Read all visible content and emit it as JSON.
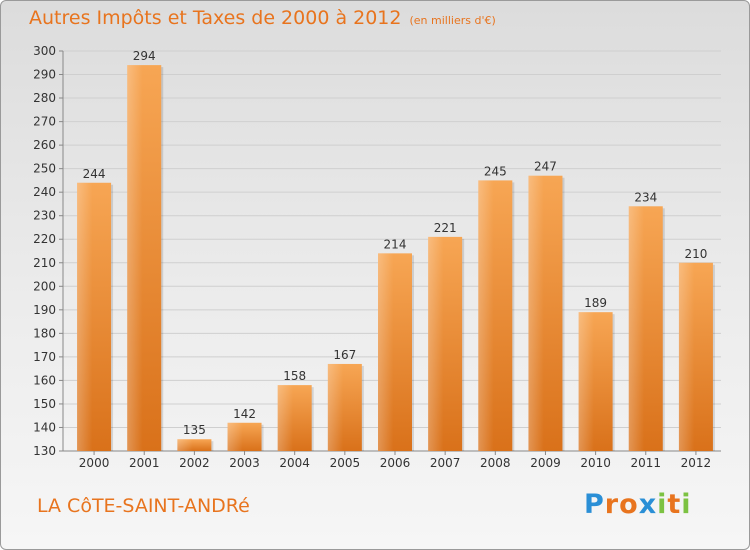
{
  "title": "Autres Impôts et Taxes de 2000 à 2012",
  "unit": "(en milliers d'€)",
  "commune": "LA CôTE-SAINT-ANDRé",
  "logo": {
    "letters": [
      "P",
      "r",
      "o",
      "x",
      "i",
      "t",
      "i"
    ],
    "colors": [
      "#2a8fd6",
      "#e8741e",
      "#e8741e",
      "#2a8fd6",
      "#7cc242",
      "#e8741e",
      "#7cc242"
    ]
  },
  "colors": {
    "bar": "#f0892e",
    "title": "#e8741e",
    "grid": "#cfcfcf"
  },
  "chart_data": {
    "type": "bar",
    "categories": [
      "2000",
      "2001",
      "2002",
      "2003",
      "2004",
      "2005",
      "2006",
      "2007",
      "2008",
      "2009",
      "2010",
      "2011",
      "2012"
    ],
    "values": [
      244,
      294,
      135,
      142,
      158,
      167,
      214,
      221,
      245,
      247,
      189,
      234,
      210
    ],
    "ylim": [
      130,
      300
    ],
    "yticks": [
      130,
      140,
      150,
      160,
      170,
      180,
      190,
      200,
      210,
      220,
      230,
      240,
      250,
      260,
      270,
      280,
      290,
      300
    ],
    "grid": true
  }
}
